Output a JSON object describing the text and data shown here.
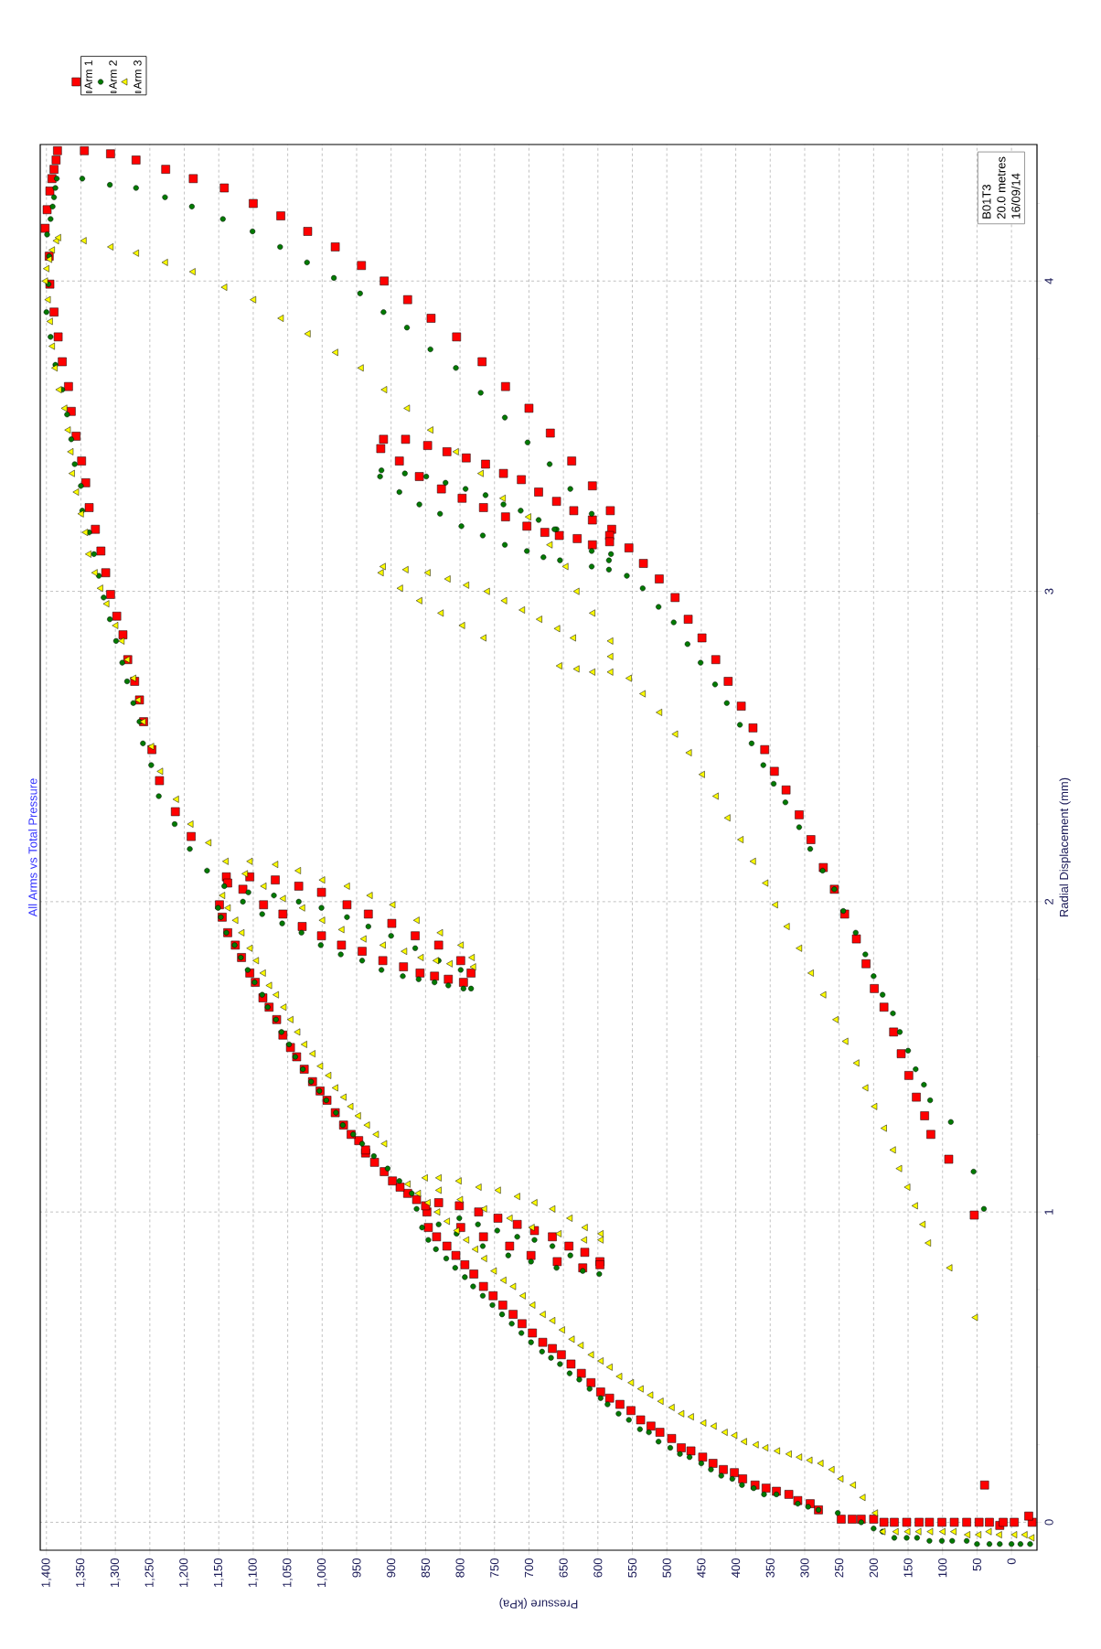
{
  "chart_data": {
    "type": "scatter",
    "title": "All Arms vs Total Pressure",
    "xlabel": "Pressure (kPa)",
    "ylabel": "Radial Displacement (mm)",
    "xlim": [
      1409,
      -37
    ],
    "ylim": [
      -0.09,
      4.44
    ],
    "yticks": [
      0,
      {
        "value": 0.25,
        "label": null
      },
      {
        "value": 0.5,
        "label": null
      },
      {
        "value": 0.75,
        "label": null
      },
      1,
      {
        "value": 1.25,
        "label": null
      },
      {
        "value": 1.5,
        "label": null
      },
      {
        "value": 1.75,
        "label": null
      },
      2,
      {
        "value": 2.25,
        "label": null
      },
      {
        "value": 2.5,
        "label": null
      },
      {
        "value": 2.75,
        "label": null
      },
      3,
      {
        "value": 3.25,
        "label": null
      },
      {
        "value": 3.5,
        "label": null
      },
      {
        "value": 3.75,
        "label": null
      },
      4,
      {
        "value": 4.25,
        "label": null
      }
    ],
    "xticks": [
      0,
      50,
      100,
      150,
      200,
      250,
      300,
      350,
      400,
      450,
      500,
      550,
      600,
      650,
      700,
      750,
      800,
      850,
      900,
      950,
      {
        "value": 1000,
        "label": "1,000"
      },
      {
        "value": 1050,
        "label": "1,050"
      },
      {
        "value": 1100,
        "label": "1,100"
      },
      {
        "value": 1150,
        "label": "1,150"
      },
      {
        "value": 1200,
        "label": "1,200"
      },
      {
        "value": 1250,
        "label": "1,250"
      },
      {
        "value": 1300,
        "label": "1,300"
      },
      {
        "value": 1350,
        "label": "1,350"
      },
      {
        "value": 1400,
        "label": "1,400"
      }
    ],
    "grid": true,
    "legend": "top left",
    "annotations": [
      "B01T3",
      "20.0 metres",
      "16/09/14"
    ],
    "series": [
      {
        "name": "Arm 1",
        "color": "#ff0000",
        "marker": "square",
        "values": [
          0.0,
          0.02,
          0.0,
          -0.01,
          0.0,
          0.0,
          0.0,
          0.0,
          0.0,
          0.0,
          0.0,
          0.0,
          0.0,
          0.0,
          0.0,
          0.01,
          0.01,
          0.01,
          0.01,
          0.04,
          0.06,
          0.07,
          0.09,
          0.1,
          0.11,
          0.12,
          0.14,
          0.16,
          0.17,
          0.19,
          0.21,
          0.23,
          0.24,
          0.27,
          0.29,
          0.31,
          0.33,
          0.36,
          0.38,
          0.4,
          0.42,
          0.45,
          0.48,
          0.51,
          0.54,
          0.56,
          0.58,
          0.61,
          0.64,
          0.67,
          0.7,
          0.73,
          0.76,
          0.8,
          0.83,
          0.86,
          0.89,
          0.92,
          0.95,
          1.0,
          1.02,
          1.03,
          1.02,
          1.0,
          0.98,
          0.96,
          0.94,
          0.92,
          0.89,
          0.87,
          0.84,
          0.83,
          0.82,
          0.84,
          0.86,
          0.89,
          0.92,
          0.95,
          1.04,
          1.06,
          1.08,
          1.1,
          1.13,
          1.16,
          1.19,
          1.2,
          1.23,
          1.25,
          1.28,
          1.32,
          1.36,
          1.39,
          1.42,
          1.46,
          1.5,
          1.53,
          1.57,
          1.62,
          1.66,
          1.69,
          1.74,
          1.77,
          1.82,
          1.86,
          1.9,
          1.95,
          1.99,
          2.08,
          2.08,
          2.07,
          2.05,
          2.03,
          1.99,
          1.96,
          1.93,
          1.89,
          1.86,
          1.81,
          1.77,
          1.74,
          1.75,
          1.76,
          1.77,
          1.79,
          1.81,
          1.84,
          1.86,
          1.89,
          1.92,
          1.96,
          1.99,
          2.04,
          2.06,
          2.21,
          2.29,
          2.39,
          2.49,
          2.58,
          2.65,
          2.71,
          2.78,
          2.86,
          2.92,
          2.99,
          3.06,
          3.13,
          3.2,
          3.27,
          3.35,
          3.42,
          3.5,
          3.58,
          3.66,
          3.74,
          3.82,
          3.9,
          3.99,
          4.08,
          4.17,
          4.23,
          4.29,
          4.33,
          4.36,
          4.39,
          4.42,
          4.42,
          4.41,
          4.39,
          4.36,
          4.33,
          4.3,
          4.25,
          4.21,
          4.16,
          4.11,
          4.05,
          4.0,
          3.94,
          3.88,
          3.82,
          3.74,
          3.66,
          3.59,
          3.51,
          3.42,
          3.34,
          3.26,
          3.2,
          3.14,
          3.09,
          3.04,
          2.98,
          2.91,
          2.85,
          2.78,
          2.71,
          2.63,
          2.56,
          2.49,
          2.42,
          2.36,
          2.28,
          2.2,
          2.11,
          2.04,
          1.96,
          1.88,
          1.8,
          1.72,
          1.66,
          1.58,
          1.51,
          1.44,
          1.37,
          1.31,
          1.25,
          1.17,
          0.99,
          0.12,
          3.49,
          3.49,
          3.47,
          3.45,
          3.43,
          3.41,
          3.38,
          3.36,
          3.32,
          3.29,
          3.26,
          3.23,
          3.18,
          3.16,
          3.15,
          3.17,
          3.18,
          3.19,
          3.21,
          3.24,
          3.27,
          3.3,
          3.33,
          3.37,
          3.42,
          3.46
        ],
        "x": [
          -30,
          -25,
          -4,
          17,
          12,
          32,
          47,
          65,
          83,
          101,
          119,
          134,
          152,
          170,
          185,
          200,
          218,
          231,
          247,
          280,
          292,
          310,
          323,
          341,
          356,
          372,
          390,
          402,
          418,
          433,
          448,
          465,
          479,
          493,
          510,
          523,
          538,
          552,
          568,
          583,
          596,
          610,
          624,
          639,
          653,
          666,
          680,
          695,
          710,
          723,
          738,
          752,
          766,
          780,
          793,
          806,
          819,
          834,
          846,
          848,
          850,
          831,
          801,
          773,
          745,
          717,
          692,
          666,
          642,
          619,
          597,
          597,
          622,
          659,
          697,
          728,
          766,
          799,
          863,
          876,
          887,
          898,
          910,
          924,
          937,
          937,
          947,
          958,
          969,
          981,
          993,
          1003,
          1014,
          1026,
          1037,
          1046,
          1057,
          1066,
          1077,
          1086,
          1097,
          1105,
          1117,
          1126,
          1137,
          1145,
          1149,
          1139,
          1105,
          1068,
          1034,
          1001,
          964,
          933,
          899,
          865,
          831,
          799,
          784,
          795,
          817,
          837,
          858,
          882,
          912,
          942,
          972,
          1001,
          1029,
          1057,
          1085,
          1115,
          1137,
          1190,
          1213,
          1236,
          1247,
          1259,
          1265,
          1272,
          1282,
          1289,
          1298,
          1307,
          1314,
          1321,
          1329,
          1338,
          1343,
          1349,
          1357,
          1364,
          1368,
          1377,
          1383,
          1389,
          1395,
          1396,
          1402,
          1399,
          1395,
          1392,
          1389,
          1386,
          1384,
          1345,
          1307,
          1270,
          1227,
          1187,
          1142,
          1100,
          1060,
          1021,
          981,
          943,
          910,
          876,
          842,
          805,
          768,
          734,
          700,
          669,
          638,
          608,
          582,
          580,
          555,
          534,
          511,
          488,
          469,
          449,
          429,
          411,
          392,
          375,
          358,
          344,
          327,
          308,
          291,
          273,
          257,
          242,
          225,
          211,
          199,
          185,
          171,
          160,
          149,
          138,
          126,
          117,
          91,
          54,
          39,
          911,
          879,
          847,
          819,
          791,
          763,
          737,
          711,
          686,
          660,
          635,
          608,
          583,
          583,
          608,
          630,
          656,
          677,
          703,
          734,
          766,
          797,
          827,
          859,
          888,
          915
        ]
      },
      {
        "name": "Arm 2",
        "color": "#007a00",
        "marker": "circle",
        "values": [
          -0.07,
          -0.07,
          -0.07,
          -0.07,
          -0.07,
          -0.07,
          -0.06,
          -0.06,
          -0.06,
          -0.06,
          -0.05,
          -0.05,
          -0.05,
          -0.03,
          -0.02,
          0.0,
          0.03,
          0.04,
          0.05,
          0.06,
          0.09,
          0.09,
          0.11,
          0.12,
          0.14,
          0.15,
          0.17,
          0.19,
          0.21,
          0.22,
          0.24,
          0.26,
          0.29,
          0.3,
          0.33,
          0.35,
          0.38,
          0.4,
          0.43,
          0.46,
          0.48,
          0.51,
          0.53,
          0.55,
          0.58,
          0.61,
          0.64,
          0.67,
          0.7,
          0.73,
          0.76,
          0.79,
          0.82,
          0.85,
          0.88,
          0.91,
          0.95,
          1.01,
          0.96,
          0.98,
          0.96,
          0.94,
          0.92,
          0.91,
          0.89,
          0.86,
          0.81,
          0.8,
          0.82,
          0.84,
          0.86,
          0.89,
          0.93,
          1.06,
          1.1,
          1.14,
          1.18,
          1.22,
          1.25,
          1.28,
          1.32,
          1.36,
          1.39,
          1.42,
          1.46,
          1.5,
          1.54,
          1.58,
          1.62,
          1.66,
          1.7,
          1.74,
          1.78,
          1.82,
          1.86,
          1.9,
          1.95,
          1.98,
          2.05,
          2.0,
          1.96,
          1.93,
          1.9,
          1.86,
          1.83,
          1.81,
          1.78,
          1.76,
          1.75,
          1.74,
          1.73,
          1.72,
          1.72,
          1.78,
          1.81,
          1.85,
          1.89,
          1.92,
          1.95,
          1.98,
          2.0,
          2.02,
          2.03,
          2.1,
          2.17,
          2.25,
          2.34,
          2.44,
          2.51,
          2.58,
          2.64,
          2.71,
          2.77,
          2.84,
          2.91,
          2.98,
          3.05,
          3.12,
          3.19,
          3.26,
          3.34,
          3.41,
          3.49,
          3.57,
          3.65,
          3.73,
          3.82,
          3.9,
          3.99,
          4.08,
          4.15,
          4.2,
          4.24,
          4.27,
          4.3,
          4.33,
          4.33,
          4.31,
          4.3,
          4.27,
          4.24,
          4.2,
          4.16,
          4.11,
          4.06,
          4.01,
          3.96,
          3.9,
          3.85,
          3.78,
          3.72,
          3.64,
          3.56,
          3.48,
          3.41,
          3.33,
          3.25,
          3.05,
          3.01,
          2.95,
          2.9,
          2.83,
          2.77,
          2.7,
          2.64,
          2.57,
          2.51,
          2.44,
          2.38,
          2.32,
          2.24,
          2.17,
          2.1,
          2.04,
          1.97,
          1.9,
          1.83,
          1.76,
          1.7,
          1.64,
          1.58,
          1.52,
          1.46,
          1.41,
          1.36,
          1.29,
          1.13,
          1.01,
          3.39,
          3.37,
          3.38,
          3.32,
          3.37,
          3.28,
          3.35,
          3.25,
          3.33,
          3.21,
          3.31,
          3.18,
          3.28,
          3.15,
          3.26,
          3.13,
          3.23,
          3.11,
          3.2,
          3.1,
          3.08,
          3.07,
          3.1,
          3.12,
          3.13,
          3.2
        ],
        "x": [
          -27,
          -13,
          0,
          17,
          32,
          50,
          65,
          86,
          101,
          119,
          137,
          152,
          170,
          187,
          200,
          218,
          252,
          280,
          295,
          310,
          341,
          359,
          374,
          391,
          405,
          421,
          436,
          450,
          467,
          481,
          495,
          512,
          526,
          539,
          555,
          570,
          586,
          596,
          612,
          627,
          641,
          655,
          668,
          681,
          697,
          711,
          725,
          739,
          753,
          767,
          781,
          793,
          807,
          820,
          835,
          846,
          855,
          863,
          831,
          801,
          774,
          746,
          717,
          692,
          666,
          640,
          622,
          598,
          660,
          697,
          730,
          767,
          805,
          870,
          888,
          905,
          925,
          942,
          955,
          970,
          980,
          994,
          1004,
          1016,
          1028,
          1039,
          1048,
          1059,
          1067,
          1079,
          1087,
          1098,
          1108,
          1118,
          1127,
          1139,
          1147,
          1151,
          1142,
          1115,
          1087,
          1058,
          1030,
          1002,
          973,
          942,
          914,
          883,
          860,
          837,
          817,
          795,
          784,
          799,
          831,
          865,
          900,
          933,
          964,
          1001,
          1034,
          1070,
          1107,
          1167,
          1192,
          1214,
          1237,
          1248,
          1260,
          1265,
          1274,
          1283,
          1290,
          1299,
          1308,
          1317,
          1324,
          1331,
          1338,
          1348,
          1350,
          1359,
          1364,
          1370,
          1377,
          1387,
          1394,
          1400,
          1397,
          1396,
          1399,
          1394,
          1391,
          1389,
          1387,
          1385,
          1348,
          1308,
          1270,
          1228,
          1189,
          1144,
          1101,
          1061,
          1022,
          983,
          945,
          911,
          877,
          843,
          806,
          770,
          735,
          702,
          670,
          640,
          609,
          558,
          535,
          512,
          490,
          470,
          451,
          430,
          413,
          394,
          377,
          360,
          345,
          328,
          308,
          292,
          274,
          257,
          244,
          226,
          212,
          200,
          187,
          172,
          162,
          150,
          139,
          127,
          118,
          88,
          55,
          40,
          914,
          916,
          880,
          888,
          849,
          859,
          821,
          829,
          792,
          798,
          763,
          767,
          737,
          735,
          712,
          703,
          686,
          679,
          660,
          655,
          609,
          584,
          584,
          581,
          609,
          663
        ]
      },
      {
        "name": "Arm 3",
        "color": "#ffff00",
        "marker": "triangle",
        "values": [
          -0.05,
          -0.04,
          -0.04,
          -0.04,
          -0.03,
          -0.04,
          -0.04,
          -0.03,
          -0.03,
          -0.03,
          -0.03,
          -0.03,
          -0.03,
          -0.03,
          0.03,
          0.08,
          0.12,
          0.14,
          0.17,
          0.19,
          0.2,
          0.21,
          0.22,
          0.23,
          0.24,
          0.25,
          0.26,
          0.28,
          0.29,
          0.31,
          0.32,
          0.34,
          0.35,
          0.37,
          0.39,
          0.41,
          0.43,
          0.45,
          0.47,
          0.5,
          0.52,
          0.54,
          0.57,
          0.59,
          0.62,
          0.65,
          0.67,
          0.7,
          0.73,
          0.76,
          0.78,
          0.81,
          0.85,
          0.88,
          0.91,
          0.94,
          0.97,
          1.0,
          1.03,
          1.06,
          1.09,
          1.22,
          1.25,
          1.28,
          1.31,
          1.34,
          1.37,
          1.4,
          1.44,
          1.47,
          1.51,
          1.54,
          1.58,
          1.62,
          1.66,
          1.7,
          1.73,
          1.77,
          1.81,
          1.85,
          1.9,
          1.94,
          1.98,
          2.02,
          1.11,
          1.11,
          1.1,
          1.08,
          1.07,
          1.05,
          1.03,
          1.01,
          0.98,
          0.95,
          0.93,
          0.91,
          0.91,
          0.93,
          0.95,
          0.98,
          1.01,
          1.04,
          1.07,
          2.13,
          2.13,
          2.12,
          2.1,
          2.07,
          2.05,
          2.02,
          1.99,
          1.94,
          1.9,
          1.86,
          1.82,
          1.79,
          1.8,
          1.81,
          1.82,
          1.84,
          1.86,
          1.88,
          1.91,
          1.94,
          1.98,
          2.01,
          2.05,
          2.09,
          2.19,
          2.25,
          2.33,
          2.42,
          2.5,
          2.58,
          2.65,
          2.72,
          2.78,
          2.84,
          2.89,
          2.96,
          3.01,
          3.06,
          3.12,
          3.19,
          3.25,
          3.32,
          3.38,
          3.45,
          3.52,
          3.59,
          3.65,
          3.72,
          3.79,
          3.87,
          3.94,
          4.0,
          4.04,
          4.07,
          4.1,
          4.13,
          4.14,
          4.13,
          4.11,
          4.09,
          4.06,
          4.03,
          3.98,
          3.94,
          3.88,
          3.83,
          3.77,
          3.72,
          3.65,
          3.59,
          3.52,
          3.45,
          3.38,
          3.3,
          3.24,
          3.15,
          3.08,
          3.0,
          2.93,
          2.84,
          2.79,
          2.76,
          2.75,
          2.74,
          2.74,
          2.72,
          2.67,
          2.61,
          2.54,
          2.48,
          2.41,
          2.34,
          2.27,
          2.2,
          2.13,
          2.06,
          1.99,
          1.92,
          1.85,
          1.77,
          1.7,
          1.62,
          1.55,
          1.48,
          1.4,
          1.34,
          1.27,
          1.2,
          1.14,
          1.08,
          1.02,
          0.96,
          0.9,
          0.82,
          0.66,
          3.08,
          3.06,
          3.07,
          3.06,
          3.04,
          3.02,
          3.0,
          2.97,
          2.94,
          2.91,
          2.88,
          2.85,
          3.01,
          2.97,
          2.93,
          2.89,
          2.85
        ],
        "x": [
          -30,
          -20,
          -5,
          17,
          32,
          47,
          63,
          83,
          99,
          117,
          134,
          150,
          167,
          186,
          197,
          215,
          229,
          247,
          260,
          276,
          292,
          307,
          322,
          339,
          356,
          370,
          387,
          401,
          415,
          431,
          446,
          464,
          478,
          492,
          508,
          523,
          537,
          551,
          568,
          582,
          595,
          609,
          624,
          637,
          651,
          665,
          679,
          694,
          708,
          722,
          736,
          750,
          764,
          777,
          790,
          804,
          818,
          832,
          846,
          860,
          875,
          909,
          921,
          934,
          947,
          958,
          968,
          980,
          990,
          1002,
          1013,
          1025,
          1035,
          1045,
          1055,
          1066,
          1076,
          1085,
          1095,
          1104,
          1116,
          1125,
          1136,
          1144,
          850,
          830,
          801,
          772,
          744,
          716,
          691,
          665,
          640,
          618,
          595,
          595,
          619,
          656,
          695,
          727,
          764,
          799,
          830,
          1139,
          1104,
          1067,
          1034,
          999,
          963,
          930,
          897,
          862,
          828,
          798,
          782,
          780,
          814,
          834,
          856,
          880,
          911,
          939,
          971,
          999,
          1028,
          1056,
          1084,
          1111,
          1164,
          1190,
          1211,
          1234,
          1247,
          1259,
          1266,
          1273,
          1282,
          1290,
          1299,
          1312,
          1321,
          1329,
          1338,
          1343,
          1349,
          1356,
          1362,
          1364,
          1368,
          1373,
          1381,
          1387,
          1391,
          1394,
          1397,
          1401,
          1399,
          1395,
          1391,
          1385,
          1382,
          1345,
          1306,
          1269,
          1227,
          1187,
          1141,
          1099,
          1059,
          1020,
          980,
          943,
          909,
          876,
          842,
          805,
          769,
          737,
          700,
          669,
          646,
          630,
          607,
          581,
          581,
          655,
          630,
          607,
          581,
          554,
          534,
          510,
          487,
          467,
          448,
          428,
          411,
          392,
          374,
          356,
          342,
          325,
          307,
          290,
          272,
          254,
          240,
          224,
          211,
          198,
          184,
          171,
          162,
          150,
          139,
          128,
          120,
          89,
          52,
          911,
          914,
          878,
          846,
          817,
          790,
          760,
          735,
          709,
          684,
          658,
          635,
          886,
          858,
          827,
          796,
          765
        ]
      }
    ]
  }
}
